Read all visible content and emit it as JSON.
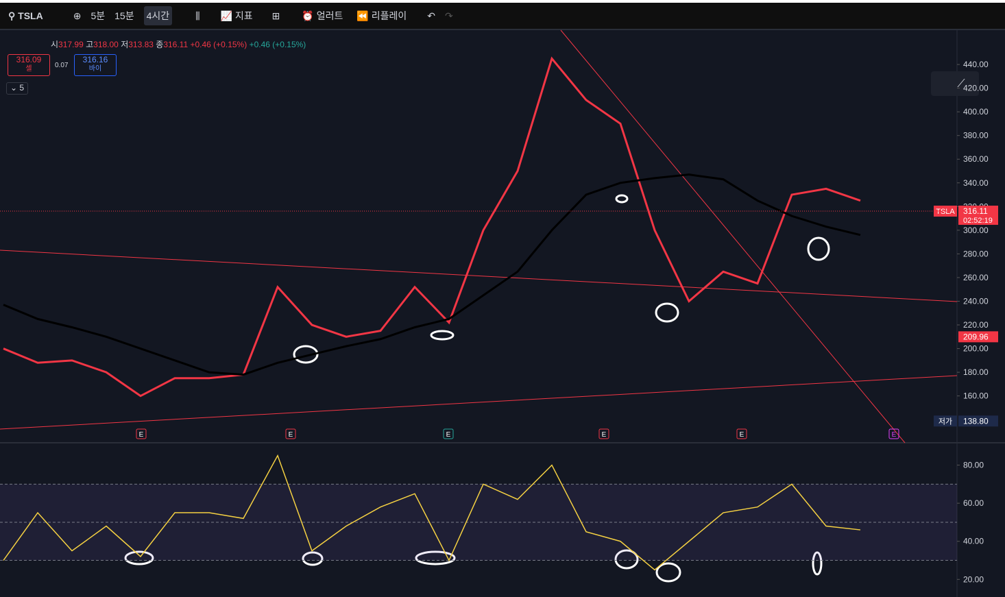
{
  "toolbar": {
    "symbol": "TSLA",
    "intervals": [
      "5분",
      "15분",
      "4시간"
    ],
    "indicators": "지표",
    "alert": "얼러트",
    "replay": "리플레이"
  },
  "legend": {
    "open_label": "시",
    "open": "317.99",
    "high_label": "고",
    "high": "318.00",
    "low_label": "저",
    "low": "313.83",
    "close_label": "종",
    "close": "316.11",
    "change": "+0.46 (+0.15%)",
    "change_alt": "+0.46 (+0.15%)"
  },
  "trade": {
    "sell": "316.09",
    "sell_label": "셀",
    "spread": "0.07",
    "buy": "316.16",
    "buy_label": "바이"
  },
  "indicator_count": "5",
  "currency": "USD",
  "price_chart": {
    "type": "line",
    "ylim": [
      121,
      469
    ],
    "yticks": [
      {
        "value": 440,
        "label": "440.00"
      },
      {
        "value": 420,
        "label": "420.00"
      },
      {
        "value": 400,
        "label": "400.00"
      },
      {
        "value": 380,
        "label": "380.00"
      },
      {
        "value": 360,
        "label": "360.00"
      },
      {
        "value": 340,
        "label": "340.00"
      },
      {
        "value": 320,
        "label": "320.00"
      },
      {
        "value": 300,
        "label": "300.00"
      },
      {
        "value": 280,
        "label": "280.00"
      },
      {
        "value": 260,
        "label": "260.00"
      },
      {
        "value": 240,
        "label": "240.00"
      },
      {
        "value": 220,
        "label": "220.00"
      },
      {
        "value": 200,
        "label": "200.00"
      },
      {
        "value": 180,
        "label": "180.00"
      },
      {
        "value": 160,
        "label": "160.00"
      }
    ],
    "series": [
      {
        "color": "#f23645",
        "values": [
          200,
          188,
          190,
          180,
          160,
          175,
          175,
          178,
          252,
          220,
          210,
          215,
          252,
          222,
          300,
          350,
          445,
          410,
          390,
          300,
          240,
          265,
          255,
          330,
          335,
          325
        ]
      },
      {
        "color": "#000000",
        "values": [
          237,
          225,
          218,
          210,
          200,
          190,
          180,
          178,
          188,
          195,
          202,
          208,
          218,
          225,
          245,
          265,
          300,
          330,
          340,
          344,
          347,
          343,
          325,
          312,
          303,
          296
        ]
      }
    ],
    "tags": [
      {
        "name": "TSLA",
        "price": {
          "value": 316.11,
          "label": "316.11"
        },
        "time": "02:52:19",
        "color": "#f23645"
      },
      {
        "price": {
          "value": 209.96,
          "label": "209.96"
        },
        "color": "#f23645"
      },
      {
        "name": "저가",
        "price": {
          "value": 138.8,
          "label": "138.80"
        },
        "color": "#1e2a4a"
      }
    ],
    "events": [
      "E",
      "E",
      "E",
      "E",
      "E",
      "E"
    ]
  },
  "rsi_chart": {
    "type": "line",
    "ylim": [
      14,
      91
    ],
    "yticks": [
      {
        "value": 80,
        "label": "80.00"
      },
      {
        "value": 60,
        "label": "60.00"
      },
      {
        "value": 40,
        "label": "40.00"
      },
      {
        "value": 20,
        "label": "20.00"
      }
    ],
    "bands": [
      70,
      50,
      30
    ],
    "series": [
      {
        "color": "#f5d142",
        "values": [
          30,
          55,
          35,
          48,
          32,
          55,
          55,
          52,
          85,
          35,
          48,
          58,
          65,
          30,
          70,
          62,
          80,
          45,
          40,
          25,
          40,
          55,
          58,
          70,
          48,
          46
        ]
      }
    ]
  }
}
